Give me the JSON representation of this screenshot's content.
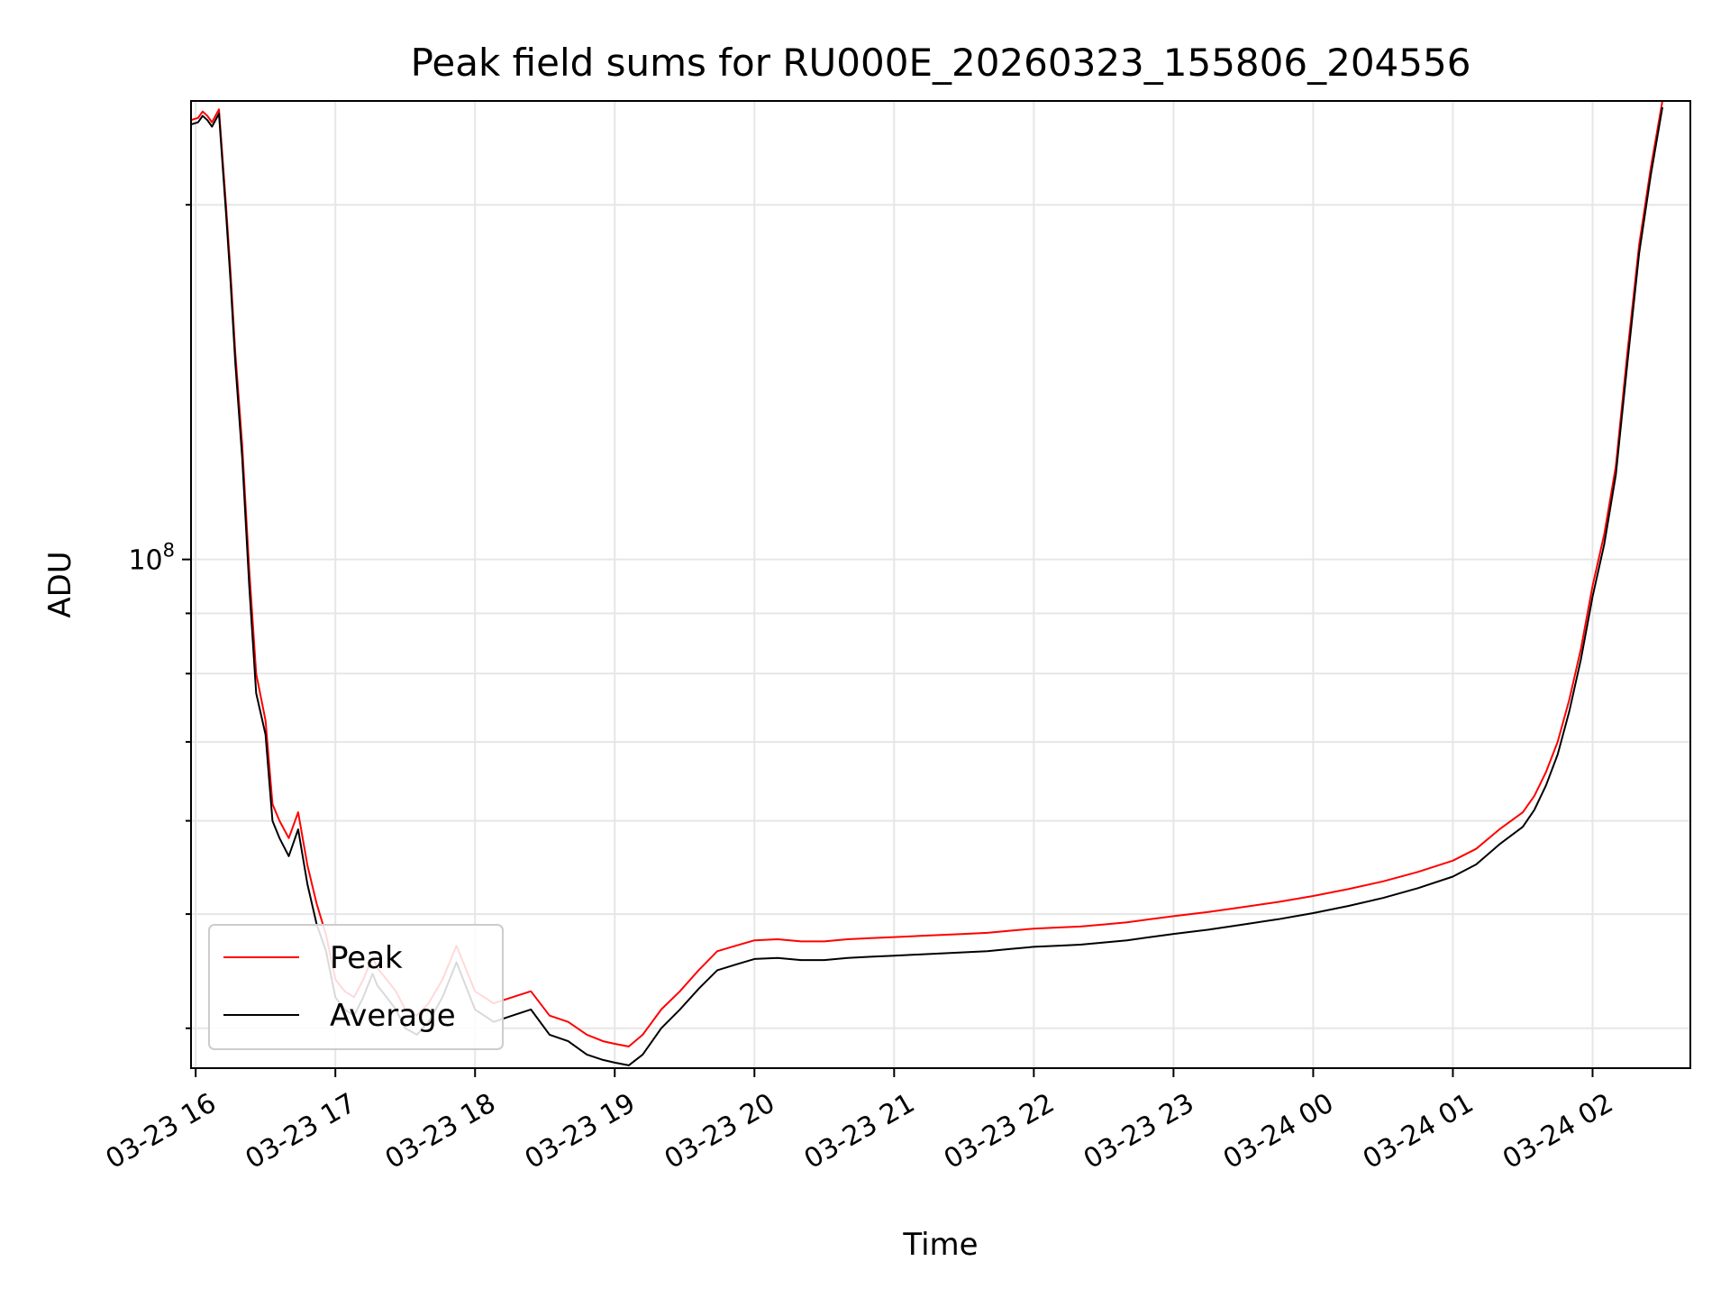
{
  "chart_data": {
    "type": "line",
    "title": "Peak field sums for RU000E_20260323_155806_204556",
    "xlabel": "Time",
    "ylabel": "ADU",
    "y_scale": "log",
    "x_unit": "hours",
    "xlim": [
      "03-23 15:58",
      "03-24 02:42"
    ],
    "ylim": [
      37000000,
      245000000
    ],
    "grid": true,
    "legend_position": "lower-left",
    "x_ticks": [
      "03-23 16",
      "03-23 17",
      "03-23 18",
      "03-23 19",
      "03-23 20",
      "03-23 21",
      "03-23 22",
      "03-23 23",
      "03-24 00",
      "03-24 01",
      "03-24 02"
    ],
    "y_tick_labels": [
      {
        "base": "10",
        "exp": "8",
        "value": 100000000
      }
    ],
    "colors": {
      "Peak": "#ff0000",
      "Average": "#000000"
    },
    "series": [
      {
        "name": "Peak",
        "x": [
          "03-23 15:58",
          "03-23 16:01",
          "03-23 16:03",
          "03-23 16:05",
          "03-23 16:07",
          "03-23 16:10",
          "03-23 16:13",
          "03-23 16:15",
          "03-23 16:17",
          "03-23 16:20",
          "03-23 16:23",
          "03-23 16:26",
          "03-23 16:30",
          "03-23 16:33",
          "03-23 16:36",
          "03-23 16:40",
          "03-23 16:44",
          "03-23 16:48",
          "03-23 16:52",
          "03-23 16:56",
          "03-23 17:00",
          "03-23 17:04",
          "03-23 17:08",
          "03-23 17:12",
          "03-23 17:16",
          "03-23 17:18",
          "03-23 17:22",
          "03-23 17:26",
          "03-23 17:30",
          "03-23 17:35",
          "03-23 17:40",
          "03-23 17:46",
          "03-23 17:52",
          "03-23 18:00",
          "03-23 18:08",
          "03-23 18:16",
          "03-23 18:24",
          "03-23 18:32",
          "03-23 18:40",
          "03-23 18:48",
          "03-23 18:55",
          "03-23 19:00",
          "03-23 19:06",
          "03-23 19:12",
          "03-23 19:20",
          "03-23 19:28",
          "03-23 19:36",
          "03-23 19:44",
          "03-23 19:52",
          "03-23 20:00",
          "03-23 20:10",
          "03-23 20:20",
          "03-23 20:30",
          "03-23 20:40",
          "03-23 20:50",
          "03-23 21:00",
          "03-23 21:10",
          "03-23 21:20",
          "03-23 21:30",
          "03-23 21:40",
          "03-23 21:50",
          "03-23 22:00",
          "03-23 22:10",
          "03-23 22:20",
          "03-23 22:30",
          "03-23 22:40",
          "03-23 22:50",
          "03-23 23:00",
          "03-23 23:15",
          "03-23 23:30",
          "03-23 23:45",
          "03-24 00:00",
          "03-24 00:15",
          "03-24 00:30",
          "03-24 00:45",
          "03-24 01:00",
          "03-24 01:10",
          "03-24 01:20",
          "03-24 01:30",
          "03-24 01:35",
          "03-24 01:40",
          "03-24 01:45",
          "03-24 01:50",
          "03-24 01:55",
          "03-24 02:00",
          "03-24 02:05",
          "03-24 02:10",
          "03-24 02:15",
          "03-24 02:20",
          "03-24 02:25",
          "03-24 02:30"
        ],
        "y": [
          236000000,
          237000000,
          240000000,
          238000000,
          235000000,
          241000000,
          200000000,
          175000000,
          150000000,
          125000000,
          98000000,
          80000000,
          73000000,
          62000000,
          60000000,
          58000000,
          61000000,
          55000000,
          51000000,
          48000000,
          44000000,
          43000000,
          42500000,
          44000000,
          46000000,
          45000000,
          44000000,
          43000000,
          41500000,
          41000000,
          42000000,
          44000000,
          47000000,
          43000000,
          42000000,
          42500000,
          43000000,
          41000000,
          40500000,
          39500000,
          39000000,
          38800000,
          38600000,
          39500000,
          41500000,
          43000000,
          44800000,
          46500000,
          47000000,
          47500000,
          47600000,
          47400000,
          47400000,
          47600000,
          47700000,
          47800000,
          47900000,
          48000000,
          48100000,
          48200000,
          48400000,
          48600000,
          48700000,
          48800000,
          49000000,
          49200000,
          49500000,
          49800000,
          50200000,
          50700000,
          51200000,
          51800000,
          52500000,
          53300000,
          54300000,
          55500000,
          56800000,
          59000000,
          61000000,
          63000000,
          66000000,
          70000000,
          76000000,
          84000000,
          95000000,
          105000000,
          120000000,
          150000000,
          185000000,
          215000000,
          245000000
        ]
      },
      {
        "name": "Average",
        "x": [
          "03-23 15:58",
          "03-23 16:01",
          "03-23 16:03",
          "03-23 16:05",
          "03-23 16:07",
          "03-23 16:10",
          "03-23 16:13",
          "03-23 16:15",
          "03-23 16:17",
          "03-23 16:20",
          "03-23 16:23",
          "03-23 16:26",
          "03-23 16:30",
          "03-23 16:33",
          "03-23 16:36",
          "03-23 16:40",
          "03-23 16:44",
          "03-23 16:48",
          "03-23 16:52",
          "03-23 16:56",
          "03-23 17:00",
          "03-23 17:04",
          "03-23 17:08",
          "03-23 17:12",
          "03-23 17:16",
          "03-23 17:18",
          "03-23 17:22",
          "03-23 17:26",
          "03-23 17:30",
          "03-23 17:35",
          "03-23 17:40",
          "03-23 17:46",
          "03-23 17:52",
          "03-23 18:00",
          "03-23 18:08",
          "03-23 18:16",
          "03-23 18:24",
          "03-23 18:32",
          "03-23 18:40",
          "03-23 18:48",
          "03-23 18:55",
          "03-23 19:00",
          "03-23 19:06",
          "03-23 19:12",
          "03-23 19:20",
          "03-23 19:28",
          "03-23 19:36",
          "03-23 19:44",
          "03-23 19:52",
          "03-23 20:00",
          "03-23 20:10",
          "03-23 20:20",
          "03-23 20:30",
          "03-23 20:40",
          "03-23 20:50",
          "03-23 21:00",
          "03-23 21:10",
          "03-23 21:20",
          "03-23 21:30",
          "03-23 21:40",
          "03-23 21:50",
          "03-23 22:00",
          "03-23 22:10",
          "03-23 22:20",
          "03-23 22:30",
          "03-23 22:40",
          "03-23 22:50",
          "03-23 23:00",
          "03-23 23:15",
          "03-23 23:30",
          "03-23 23:45",
          "03-24 00:00",
          "03-24 00:15",
          "03-24 00:30",
          "03-24 00:45",
          "03-24 01:00",
          "03-24 01:10",
          "03-24 01:20",
          "03-24 01:30",
          "03-24 01:35",
          "03-24 01:40",
          "03-24 01:45",
          "03-24 01:50",
          "03-24 01:55",
          "03-24 02:00",
          "03-24 02:05",
          "03-24 02:10",
          "03-24 02:15",
          "03-24 02:20",
          "03-24 02:25",
          "03-24 02:30"
        ],
        "y": [
          234000000,
          235000000,
          238000000,
          236000000,
          233000000,
          239000000,
          197000000,
          172000000,
          147000000,
          122000000,
          95000000,
          77000000,
          71000000,
          60000000,
          58000000,
          56000000,
          59000000,
          53000000,
          49000000,
          46500000,
          42500000,
          41500000,
          41000000,
          42500000,
          44500000,
          43500000,
          42500000,
          41500000,
          40000000,
          39500000,
          40500000,
          42500000,
          45500000,
          41500000,
          40500000,
          41000000,
          41500000,
          39500000,
          39000000,
          38000000,
          37600000,
          37400000,
          37200000,
          38000000,
          40000000,
          41500000,
          43200000,
          44800000,
          45300000,
          45800000,
          45900000,
          45700000,
          45700000,
          45900000,
          46000000,
          46100000,
          46200000,
          46300000,
          46400000,
          46500000,
          46700000,
          46900000,
          47000000,
          47100000,
          47300000,
          47500000,
          47800000,
          48100000,
          48500000,
          49000000,
          49500000,
          50100000,
          50800000,
          51600000,
          52600000,
          53800000,
          55100000,
          57300000,
          59300000,
          61300000,
          64300000,
          68300000,
          74300000,
          82300000,
          93000000,
          103000000,
          118000000,
          147000000,
          182000000,
          212000000,
          242000000
        ]
      }
    ]
  }
}
